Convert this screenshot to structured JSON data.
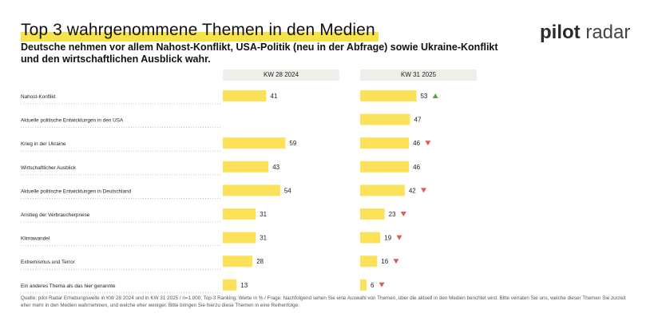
{
  "header": {
    "title": "Top 3 wahrgenommene Themen in den Medien",
    "subtitle": "Deutsche nehmen vor allem Nahost-Konflikt, USA-Politik (neu in der Abfrage) sowie Ukraine-Konflikt und den wirtschaftlichen Ausblick wahr.",
    "logo_part1": "pilot",
    "logo_part2": " radar"
  },
  "footer": {
    "source": "Quelle: pilot Radar Erhebungswelle in KW 28 2024 und in KW 31 2025 / n=1.000; Top-3 Ranking; Werte in % / Frage: Nachfolgend sehen Sie eine Auswahl von Themen, über die aktuell in den Medien berichtet wird. Bitte verraten Sie uns, welche dieser Themen Sie zurzeit eher mehr in den Medien wahrnehmen, und welche eher weniger. Bitte bringen Sie hierzu diese Themen in eine Reihenfolge."
  },
  "chart_data": {
    "type": "bar",
    "orientation": "horizontal",
    "title": "Top 3 wahrgenommene Themen in den Medien",
    "unit": "%",
    "categories": [
      "Nahost-Konflikt",
      "Aktuelle politische Entwicklungen in den USA",
      "Krieg in der Ukraine",
      "Wirtschaftlicher Ausblick",
      "Aktuelle politische Entwicklungen in Deutschland",
      "Anstieg der Verbraucherpreise",
      "Klimawandel",
      "Extremismus und Terror",
      "Ein anderes Thema als das hier genannte"
    ],
    "series": [
      {
        "name": "KW 28 2024",
        "values": [
          41,
          null,
          59,
          43,
          54,
          31,
          31,
          28,
          13
        ]
      },
      {
        "name": "KW 31 2025",
        "values": [
          53,
          47,
          46,
          46,
          42,
          23,
          19,
          16,
          6
        ],
        "trend": [
          "up",
          "",
          "down",
          "",
          "down",
          "down",
          "down",
          "down",
          "down"
        ]
      }
    ],
    "colors": {
      "bar": "#fbe25a",
      "up": "#5aa832",
      "down": "#e05a5a",
      "header_bg": "#efeee8",
      "dots": "#b5b5b5"
    }
  }
}
